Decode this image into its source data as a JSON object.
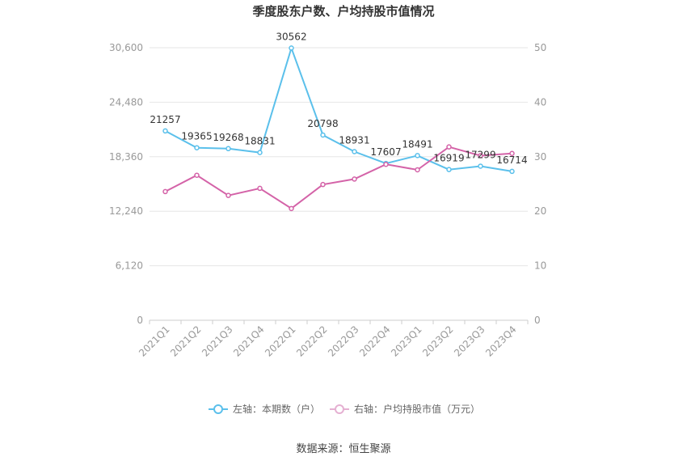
{
  "chart_data": {
    "type": "line",
    "title": "季度股东户数、户均持股市值情况",
    "categories": [
      "2021Q1",
      "2021Q2",
      "2021Q3",
      "2021Q4",
      "2022Q1",
      "2022Q2",
      "2022Q3",
      "2022Q4",
      "2023Q1",
      "2023Q2",
      "2023Q3",
      "2023Q4"
    ],
    "left_axis": {
      "min": 0,
      "max": 30600,
      "ticks": [
        "0",
        "6,120",
        "12,240",
        "18,360",
        "24,480",
        "30,600"
      ]
    },
    "right_axis": {
      "min": 0,
      "max": 50,
      "ticks": [
        "0",
        "10",
        "20",
        "30",
        "40",
        "50"
      ]
    },
    "grid": true,
    "legend_position": "bottom",
    "series": [
      {
        "name": "左轴：本期数（户）",
        "axis": "left",
        "color": "#5bc0eb",
        "values": [
          21257,
          19365,
          19268,
          18831,
          30562,
          20798,
          18931,
          17607,
          18491,
          16919,
          17299,
          16714
        ],
        "labels": [
          "21257",
          "19365",
          "19268",
          "18831",
          "30562",
          "20798",
          "18931",
          "17607",
          "18491",
          "16919",
          "17299",
          "16714"
        ]
      },
      {
        "name": "右轴：户均持股市值（万元）",
        "axis": "right",
        "color": "#d463a8",
        "values": [
          23.6,
          26.6,
          22.9,
          24.2,
          20.5,
          24.9,
          25.9,
          28.6,
          27.6,
          31.8,
          30.2,
          30.6
        ]
      }
    ],
    "source": "数据来源：恒生聚源"
  }
}
